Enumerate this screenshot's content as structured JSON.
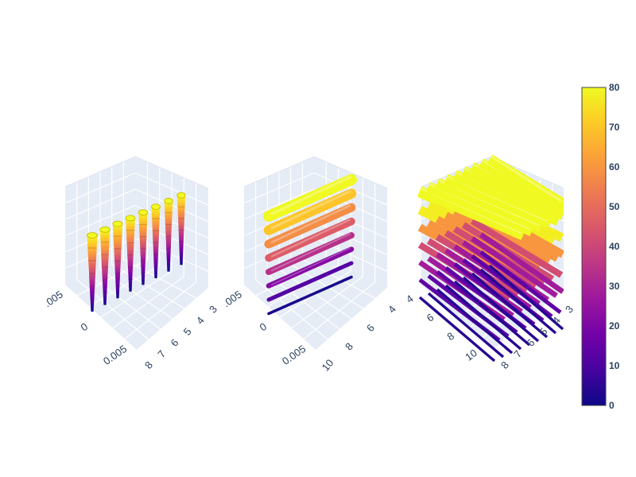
{
  "chart_data": [
    {
      "type": "streamtube-3d",
      "panel": "left",
      "orientation": "vertical tubes",
      "color_scale": "Plasma",
      "axis_tick_labels": {
        "y_axis": [
          ".005",
          "0",
          "0.005"
        ],
        "x_axis": [
          "3",
          "4",
          "5",
          "6",
          "7",
          "8"
        ]
      },
      "tube_count": 8,
      "tube_color_values_top_to_bottom": [
        80,
        0
      ]
    },
    {
      "type": "streamtube-3d",
      "panel": "center",
      "orientation": "horizontal tubes",
      "color_scale": "Plasma",
      "axis_tick_labels": {
        "y_axis": [
          ".005",
          "0",
          "0.005"
        ],
        "x_axis": [
          "4",
          "6",
          "8",
          "10"
        ]
      },
      "tube_count": 8,
      "tube_color_values_top_to_bottom": [
        80,
        70,
        58,
        46,
        34,
        22,
        12,
        2
      ]
    },
    {
      "type": "streamtube-3d",
      "panel": "right",
      "orientation": "stacked horizontal tubes",
      "color_scale": "Plasma",
      "axis_tick_labels": {
        "y_axis": [
          "4",
          "6",
          "8",
          "10"
        ],
        "x_axis": [
          "3",
          "4",
          "5",
          "6",
          "7",
          "8"
        ]
      },
      "tube_layer_color_values_top_to_bottom": [
        80,
        78,
        60,
        42,
        28,
        14,
        4
      ]
    }
  ],
  "colorbar": {
    "min": 0,
    "max": 80,
    "tick_labels": [
      "0",
      "10",
      "20",
      "30",
      "40",
      "50",
      "60",
      "70",
      "80"
    ],
    "colors": [
      "#0d0887",
      "#46039f",
      "#7201a8",
      "#9c179e",
      "#bd3786",
      "#d8576b",
      "#ed7953",
      "#fb9f3a",
      "#fdca26",
      "#f0f921"
    ]
  }
}
